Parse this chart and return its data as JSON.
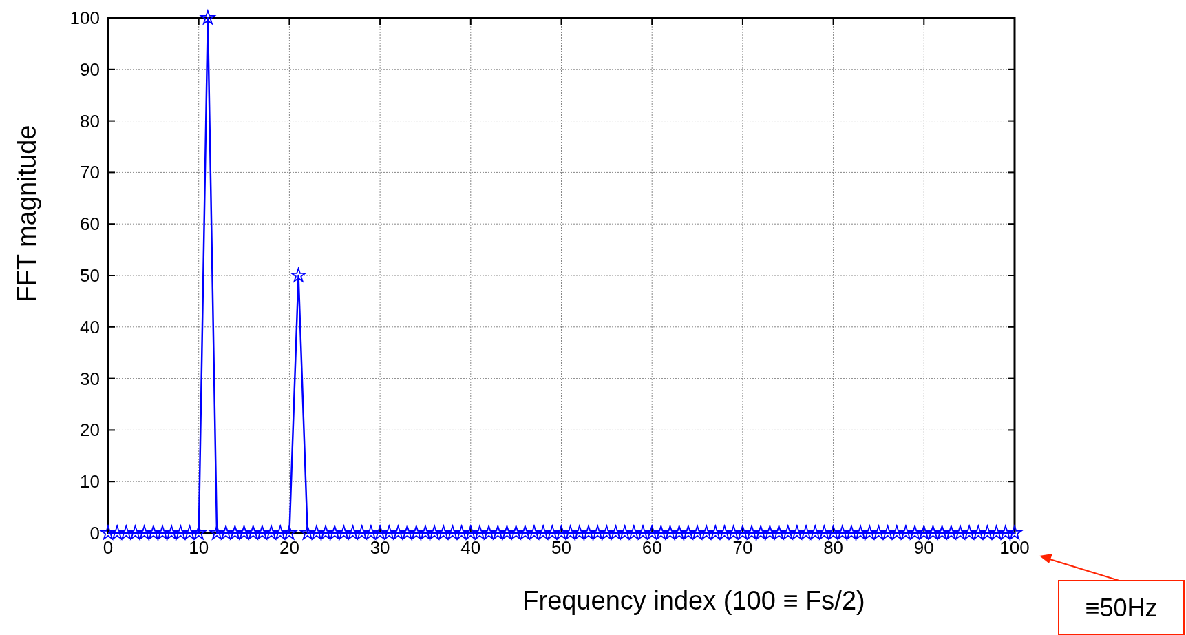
{
  "chart_data": {
    "type": "line",
    "xlabel": "Frequency index (100 ≡ Fs/2)",
    "ylabel": "FFT magnitude",
    "x": [
      0,
      1,
      2,
      3,
      4,
      5,
      6,
      7,
      8,
      9,
      10,
      11,
      12,
      13,
      14,
      15,
      16,
      17,
      18,
      19,
      20,
      21,
      22,
      23,
      24,
      25,
      26,
      27,
      28,
      29,
      30,
      31,
      32,
      33,
      34,
      35,
      36,
      37,
      38,
      39,
      40,
      41,
      42,
      43,
      44,
      45,
      46,
      47,
      48,
      49,
      50,
      51,
      52,
      53,
      54,
      55,
      56,
      57,
      58,
      59,
      60,
      61,
      62,
      63,
      64,
      65,
      66,
      67,
      68,
      69,
      70,
      71,
      72,
      73,
      74,
      75,
      76,
      77,
      78,
      79,
      80,
      81,
      82,
      83,
      84,
      85,
      86,
      87,
      88,
      89,
      90,
      91,
      92,
      93,
      94,
      95,
      96,
      97,
      98,
      99,
      100
    ],
    "series": [
      {
        "color": "#0000ff",
        "values": [
          0,
          0,
          0,
          0,
          0,
          0,
          0,
          0,
          0,
          0,
          0,
          100,
          0,
          0,
          0,
          0,
          0,
          0,
          0,
          0,
          0,
          50,
          0,
          0,
          0,
          0,
          0,
          0,
          0,
          0,
          0,
          0,
          0,
          0,
          0,
          0,
          0,
          0,
          0,
          0,
          0,
          0,
          0,
          0,
          0,
          0,
          0,
          0,
          0,
          0,
          0,
          0,
          0,
          0,
          0,
          0,
          0,
          0,
          0,
          0,
          0,
          0,
          0,
          0,
          0,
          0,
          0,
          0,
          0,
          0,
          0,
          0,
          0,
          0,
          0,
          0,
          0,
          0,
          0,
          0,
          0,
          0,
          0,
          0,
          0,
          0,
          0,
          0,
          0,
          0,
          0,
          0,
          0,
          0,
          0,
          0,
          0,
          0,
          0,
          0,
          0
        ]
      }
    ],
    "xlim": [
      0,
      100
    ],
    "xticks": [
      0,
      10,
      20,
      30,
      40,
      50,
      60,
      70,
      80,
      90,
      100
    ],
    "ylim": [
      0,
      100
    ],
    "yticks": [
      0,
      10,
      20,
      30,
      40,
      50,
      60,
      70,
      80,
      90,
      100
    ],
    "grid": true,
    "marker": "star",
    "line_style": "solid",
    "annotations": [
      "≡50Hz"
    ]
  }
}
